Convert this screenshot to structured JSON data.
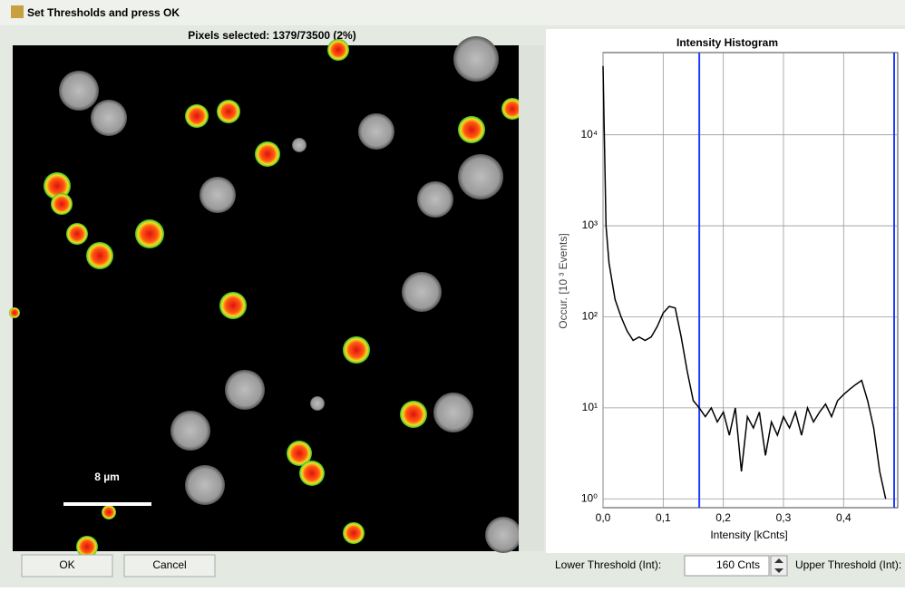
{
  "window": {
    "title": "Set Thresholds and press OK"
  },
  "image_panel": {
    "header": "Pixels selected: 1379/73500 (2%)",
    "scale_bar": "8 µm"
  },
  "histogram": {
    "type": "line",
    "title": "Intensity Histogram",
    "x_label": "Intensity [kCnts]",
    "y_label": "Occur. [10 ³ Events]",
    "x": [
      0,
      0.005,
      0.01,
      0.02,
      0.03,
      0.04,
      0.05,
      0.06,
      0.07,
      0.08,
      0.09,
      0.1,
      0.11,
      0.12,
      0.13,
      0.14,
      0.15,
      0.16,
      0.17,
      0.18,
      0.19,
      0.2,
      0.21,
      0.22,
      0.23,
      0.24,
      0.25,
      0.26,
      0.27,
      0.28,
      0.29,
      0.3,
      0.31,
      0.32,
      0.33,
      0.34,
      0.35,
      0.36,
      0.37,
      0.38,
      0.39,
      0.4,
      0.41,
      0.42,
      0.43,
      0.44,
      0.45,
      0.46,
      0.47
    ],
    "values": [
      57000,
      1000,
      390,
      155,
      100,
      70,
      55,
      60,
      55,
      60,
      78,
      110,
      130,
      125,
      60,
      25,
      12,
      10,
      8,
      10,
      7,
      9,
      5,
      10,
      2,
      8,
      6,
      9,
      3,
      7,
      5,
      8,
      6,
      9,
      5,
      10,
      7,
      9,
      11,
      8,
      12,
      14,
      16,
      18,
      20,
      12,
      6,
      2,
      1
    ],
    "color": "#000000",
    "xlim": [
      0,
      0.49
    ],
    "xticks": [
      {
        "value": 0,
        "label": "0,0"
      },
      {
        "value": 0.1,
        "label": "0,1"
      },
      {
        "value": 0.2,
        "label": "0,2"
      },
      {
        "value": 0.3,
        "label": "0,3"
      },
      {
        "value": 0.4,
        "label": "0,4"
      }
    ],
    "ylim": [
      0.8,
      80000
    ],
    "yticks": [
      {
        "value": 1,
        "label": "10⁰"
      },
      {
        "value": 10,
        "label": "10¹"
      },
      {
        "value": 100,
        "label": "10²"
      },
      {
        "value": 1000,
        "label": "10³"
      },
      {
        "value": 10000,
        "label": "10⁴"
      }
    ],
    "log_y": true,
    "grid": true,
    "thresholds": [
      0.16,
      0.484
    ],
    "threshold_color": "#1f3cff"
  },
  "controls": {
    "ok": "OK",
    "cancel": "Cancel",
    "lower_label": "Lower Threshold (Int):",
    "lower_value": "160 Cnts",
    "upper_label": "Upper Threshold (Int):"
  }
}
